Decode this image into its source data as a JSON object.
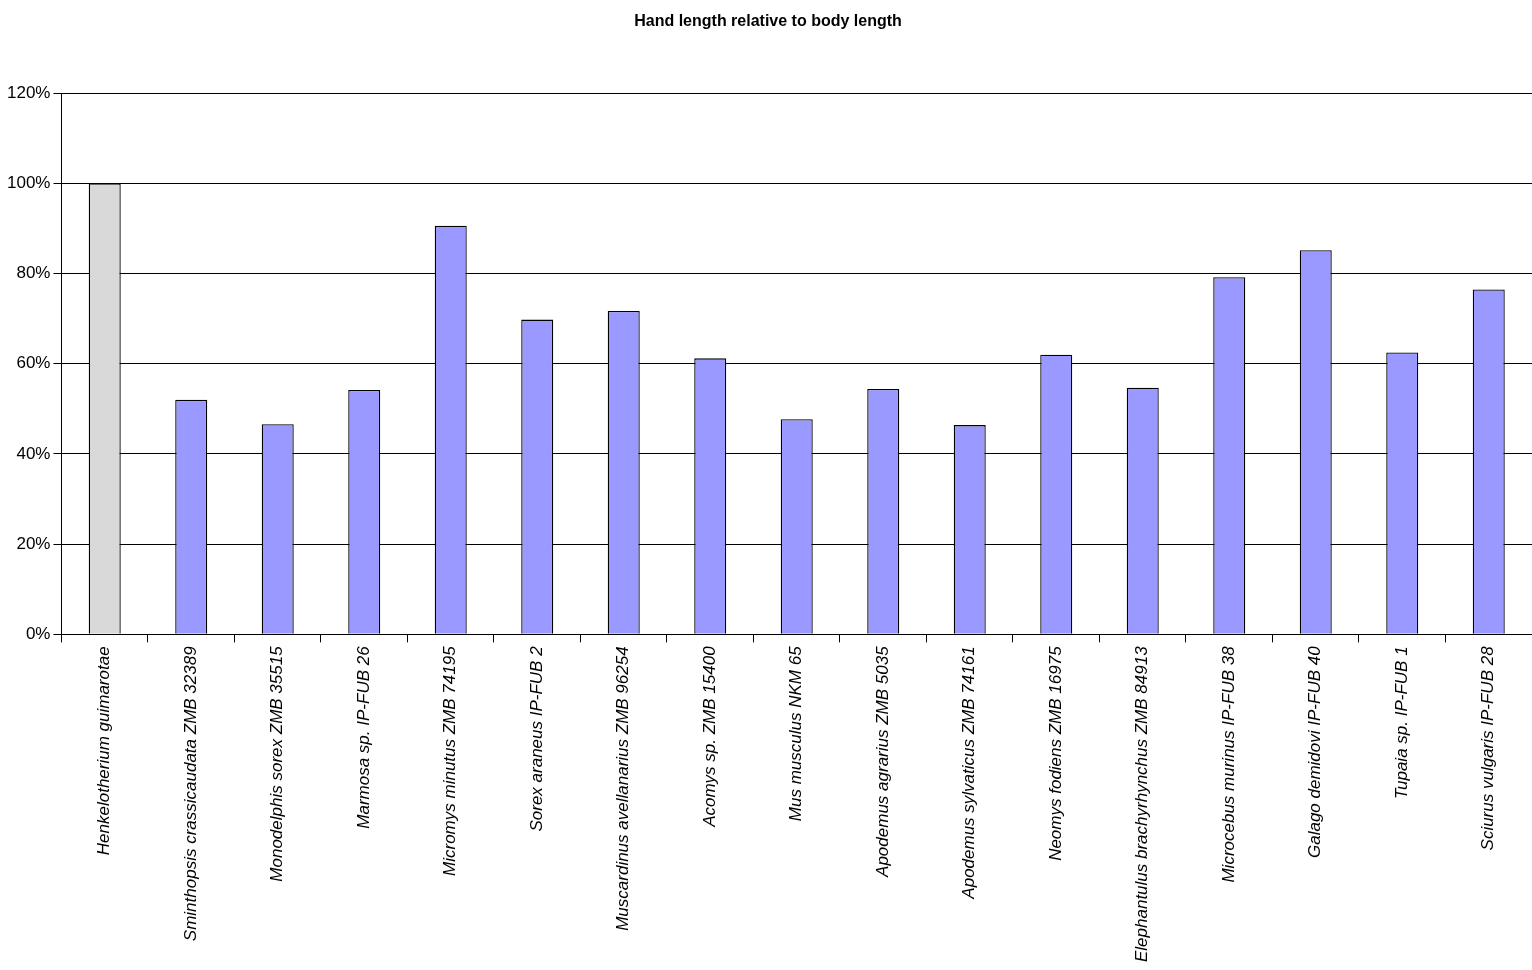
{
  "chart_data": {
    "type": "bar",
    "title": "Hand length relative to body length",
    "categories": [
      "Henkelotherium guimarotae",
      "Sminthopsis crassicaudata ZMB 32389",
      "Monodelphis sorex ZMB 35515",
      "Marmosa sp. IP-FUB 26",
      "Micromys minutus ZMB 74195",
      "Sorex araneus IP-FUB 2",
      "Muscardinus avellanarius ZMB 96254",
      "Acomys sp. ZMB 15400",
      "Mus musculus NKM 65",
      "Apodemus agrarius ZMB 5035",
      "Apodemus sylvaticus ZMB 74161",
      "Neomys fodiens ZMB 16975",
      "Elephantulus brachyrhynchus ZMB 84913",
      "Microcebus murinus IP-FUB 38",
      "Galago demidovi IP-FUB 40",
      "Tupaia sp. IP-FUB 1",
      "Sciurus vulgaris IP-FUB 28"
    ],
    "values": [
      100,
      52,
      46.6,
      54.2,
      90.6,
      69.8,
      71.7,
      61.2,
      47.7,
      54.4,
      46.4,
      62,
      54.7,
      79.2,
      85.2,
      62.5,
      76.5
    ],
    "colors": [
      "#d9d9d9",
      "#9999ff",
      "#9999ff",
      "#9999ff",
      "#9999ff",
      "#9999ff",
      "#9999ff",
      "#9999ff",
      "#9999ff",
      "#9999ff",
      "#9999ff",
      "#9999ff",
      "#9999ff",
      "#9999ff",
      "#9999ff",
      "#9999ff",
      "#9999ff"
    ],
    "ylim": [
      0,
      120
    ],
    "yticks": [
      {
        "value": 0,
        "label": "0%"
      },
      {
        "value": 20,
        "label": "20%"
      },
      {
        "value": 40,
        "label": "40%"
      },
      {
        "value": 60,
        "label": "60%"
      },
      {
        "value": 80,
        "label": "80%"
      },
      {
        "value": 100,
        "label": "100%"
      },
      {
        "value": 120,
        "label": "120%"
      }
    ],
    "grid": "y",
    "legend": false
  }
}
